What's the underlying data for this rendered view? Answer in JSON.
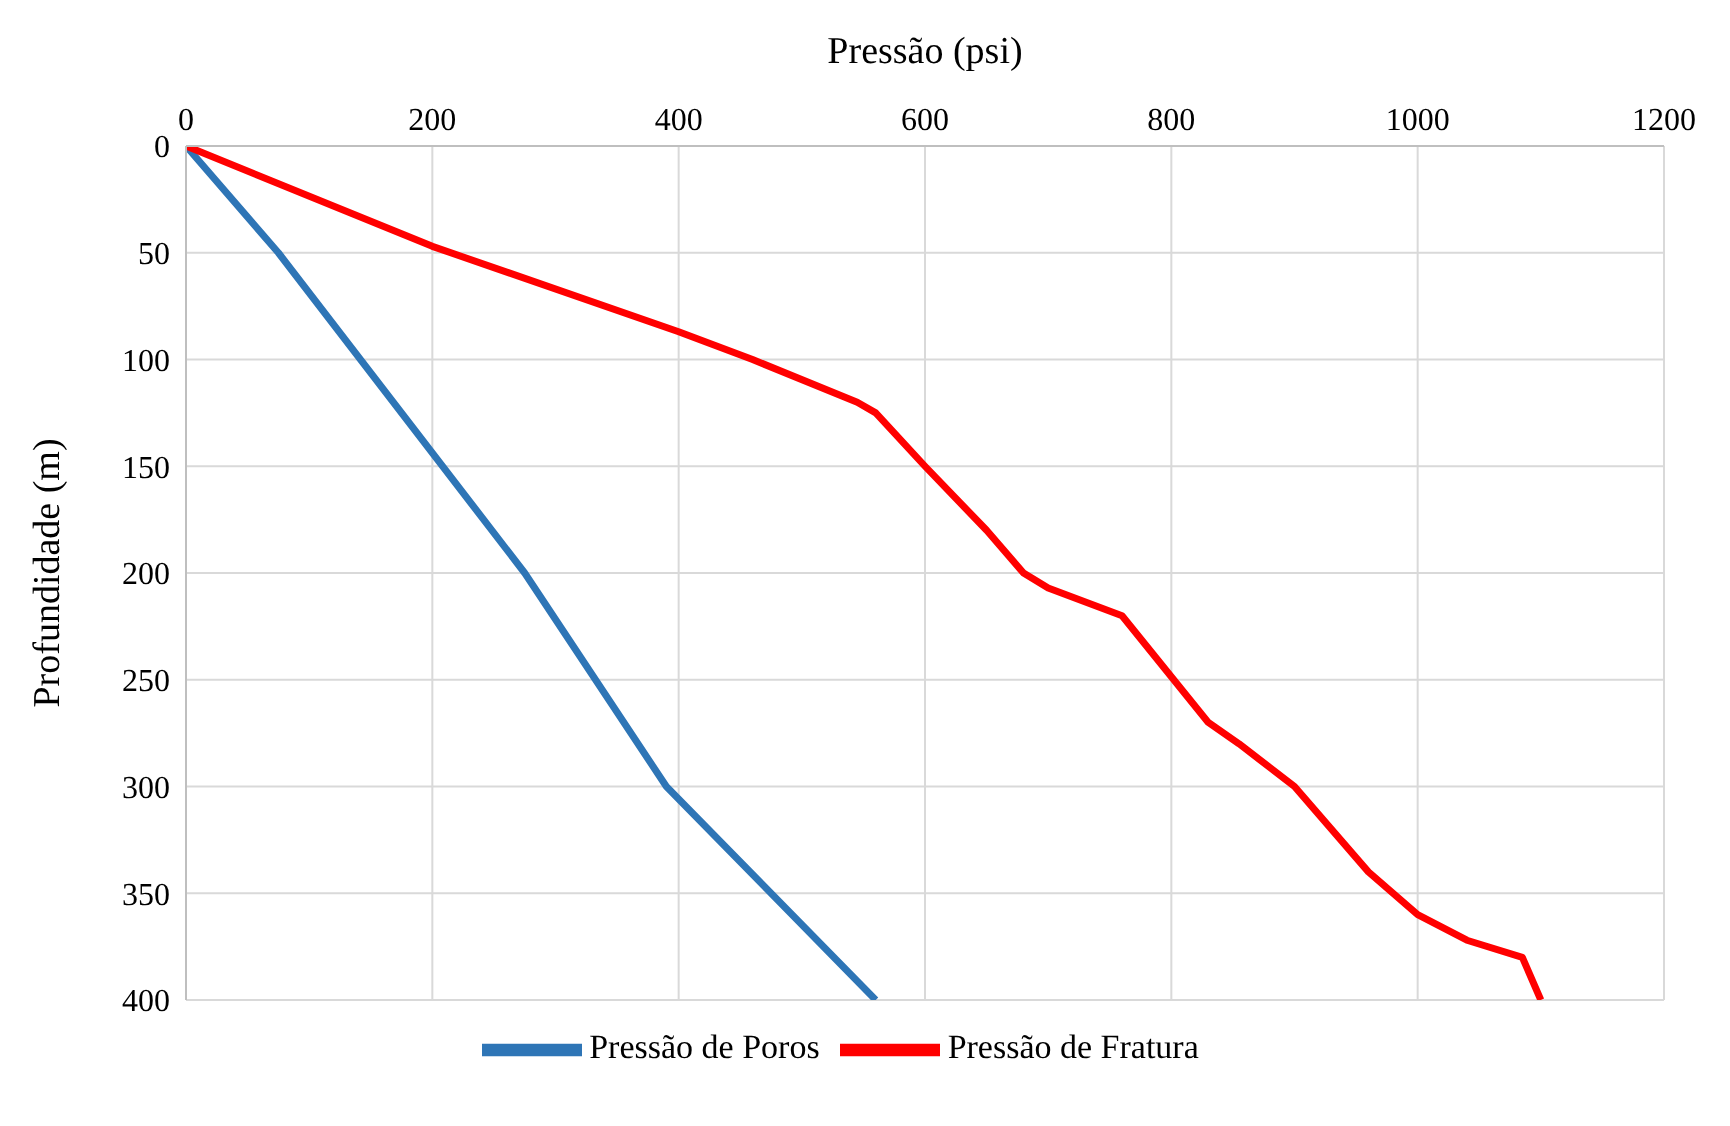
{
  "chart_data": {
    "type": "line",
    "xlabel": "Pressão (psi)",
    "ylabel": "Profundidade (m)",
    "xlim": [
      0,
      1200
    ],
    "xticks": [
      0,
      200,
      400,
      600,
      800,
      1000,
      1200
    ],
    "ylim": [
      400,
      0
    ],
    "yticks": [
      0,
      50,
      100,
      150,
      200,
      250,
      300,
      350,
      400
    ],
    "grid": true,
    "legend": "bottom",
    "marker": "none",
    "line_style": "solid",
    "series": [
      {
        "name": "Pressão de Poros",
        "color": "#2e75b6",
        "x": [
          0,
          75,
          275,
          390,
          560
        ],
        "values": [
          0,
          50,
          200,
          300,
          400
        ]
      },
      {
        "name": "Pressão de Fratura",
        "color": "#ff0000",
        "x": [
          0,
          200,
          400,
          460,
          545,
          560,
          600,
          650,
          680,
          700,
          760,
          830,
          855,
          900,
          960,
          1000,
          1040,
          1085,
          1100
        ],
        "values": [
          0,
          47,
          87,
          100,
          120,
          125,
          150,
          180,
          200,
          207,
          220,
          270,
          280,
          300,
          340,
          360,
          372,
          380,
          400
        ]
      }
    ]
  }
}
